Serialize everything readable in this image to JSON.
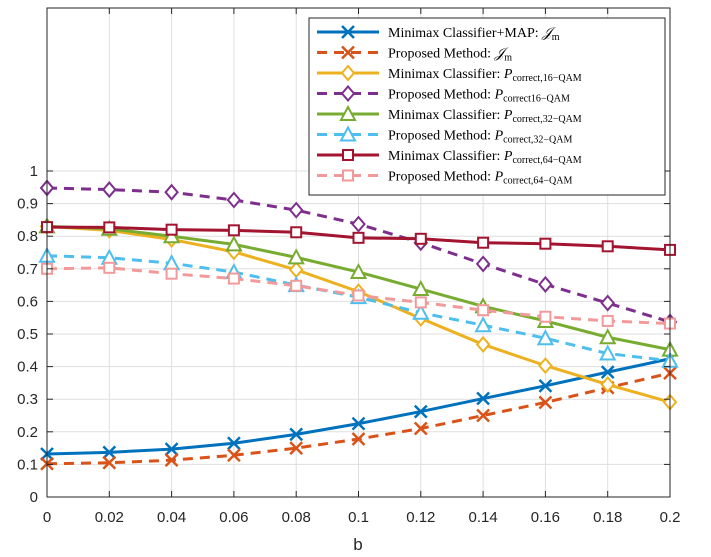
{
  "chart_data": {
    "type": "line",
    "xlabel": "b",
    "ylabel": "",
    "title": "",
    "xlim": [
      0,
      0.2
    ],
    "ylim": [
      0,
      1.5
    ],
    "x": [
      0,
      0.02,
      0.04,
      0.06,
      0.08,
      0.1,
      0.12,
      0.14,
      0.16,
      0.18,
      0.2
    ],
    "x_ticks": [
      "0",
      "0.02",
      "0.04",
      "0.06",
      "0.08",
      "0.1",
      "0.12",
      "0.14",
      "0.16",
      "0.18",
      "0.2"
    ],
    "y_ticks": [
      "0",
      "0.1",
      "0.2",
      "0.3",
      "0.4",
      "0.5",
      "0.6",
      "0.7",
      "0.8",
      "0.9",
      "1"
    ],
    "y_tick_values": [
      0,
      0.1,
      0.2,
      0.3,
      0.4,
      0.5,
      0.6,
      0.7,
      0.8,
      0.9,
      1.0
    ],
    "grid": true,
    "legend_position": "top-right",
    "series": [
      {
        "name": "Minimax Classifier+MAP: 𝒥m",
        "color": "#0072BD",
        "dash": "solid",
        "marker": "x",
        "values": [
          0.132,
          0.137,
          0.147,
          0.165,
          0.192,
          0.225,
          0.262,
          0.302,
          0.341,
          0.383,
          0.424
        ]
      },
      {
        "name": "Proposed Method: 𝒥m",
        "color": "#D95319",
        "dash": "dashed",
        "marker": "x",
        "values": [
          0.102,
          0.105,
          0.113,
          0.128,
          0.15,
          0.178,
          0.21,
          0.25,
          0.29,
          0.335,
          0.38
        ]
      },
      {
        "name": "Minimax Classifier: Pcorrect,16−QAM",
        "color": "#EDB120",
        "dash": "solid",
        "marker": "diamond",
        "values": [
          0.83,
          0.818,
          0.79,
          0.752,
          0.697,
          0.63,
          0.548,
          0.468,
          0.403,
          0.345,
          0.291
        ]
      },
      {
        "name": "Proposed Method: Pcorrect16−QAM",
        "color": "#7E2F8E",
        "dash": "dashed",
        "marker": "diamond",
        "values": [
          0.948,
          0.943,
          0.935,
          0.911,
          0.88,
          0.837,
          0.78,
          0.715,
          0.652,
          0.595,
          0.537
        ]
      },
      {
        "name": "Minimax Classifier: Pcorrect,32−QAM",
        "color": "#77AC30",
        "dash": "solid",
        "marker": "triangle",
        "values": [
          0.83,
          0.823,
          0.8,
          0.775,
          0.735,
          0.69,
          0.638,
          0.585,
          0.54,
          0.49,
          0.452
        ]
      },
      {
        "name": "Proposed Method: Pcorrect,32−QAM",
        "color": "#4DBEEE",
        "dash": "dashed",
        "marker": "triangle",
        "values": [
          0.74,
          0.734,
          0.717,
          0.69,
          0.65,
          0.613,
          0.565,
          0.527,
          0.487,
          0.44,
          0.418
        ]
      },
      {
        "name": "Minimax Classifier: Pcorrect,64−QAM",
        "color": "#A2142F",
        "dash": "solid",
        "marker": "square",
        "values": [
          0.828,
          0.827,
          0.82,
          0.818,
          0.812,
          0.795,
          0.792,
          0.78,
          0.777,
          0.769,
          0.758
        ]
      },
      {
        "name": "Proposed Method: Pcorrect,64−QAM",
        "color": "#F29A9A",
        "dash": "dashed",
        "marker": "square",
        "values": [
          0.7,
          0.703,
          0.685,
          0.67,
          0.648,
          0.618,
          0.597,
          0.573,
          0.553,
          0.54,
          0.532
        ]
      }
    ]
  },
  "legend": {
    "entries": [
      {
        "prefix": "Minimax Classifier+MAP: ",
        "sym": "𝒥",
        "sub": "m"
      },
      {
        "prefix": "Proposed Method: ",
        "sym": "𝒥",
        "sub": "m"
      },
      {
        "prefix": "Minimax Classifier: ",
        "sym": "P",
        "sub": "correct,16−QAM"
      },
      {
        "prefix": "Proposed Method: ",
        "sym": "P",
        "sub": "correct16−QAM"
      },
      {
        "prefix": "Minimax Classifier: ",
        "sym": "P",
        "sub": "correct,32−QAM"
      },
      {
        "prefix": "Proposed Method: ",
        "sym": "P",
        "sub": "correct,32−QAM"
      },
      {
        "prefix": "Minimax Classifier: ",
        "sym": "P",
        "sub": "correct,64−QAM"
      },
      {
        "prefix": "Proposed Method: ",
        "sym": "P",
        "sub": "correct,64−QAM"
      }
    ]
  }
}
